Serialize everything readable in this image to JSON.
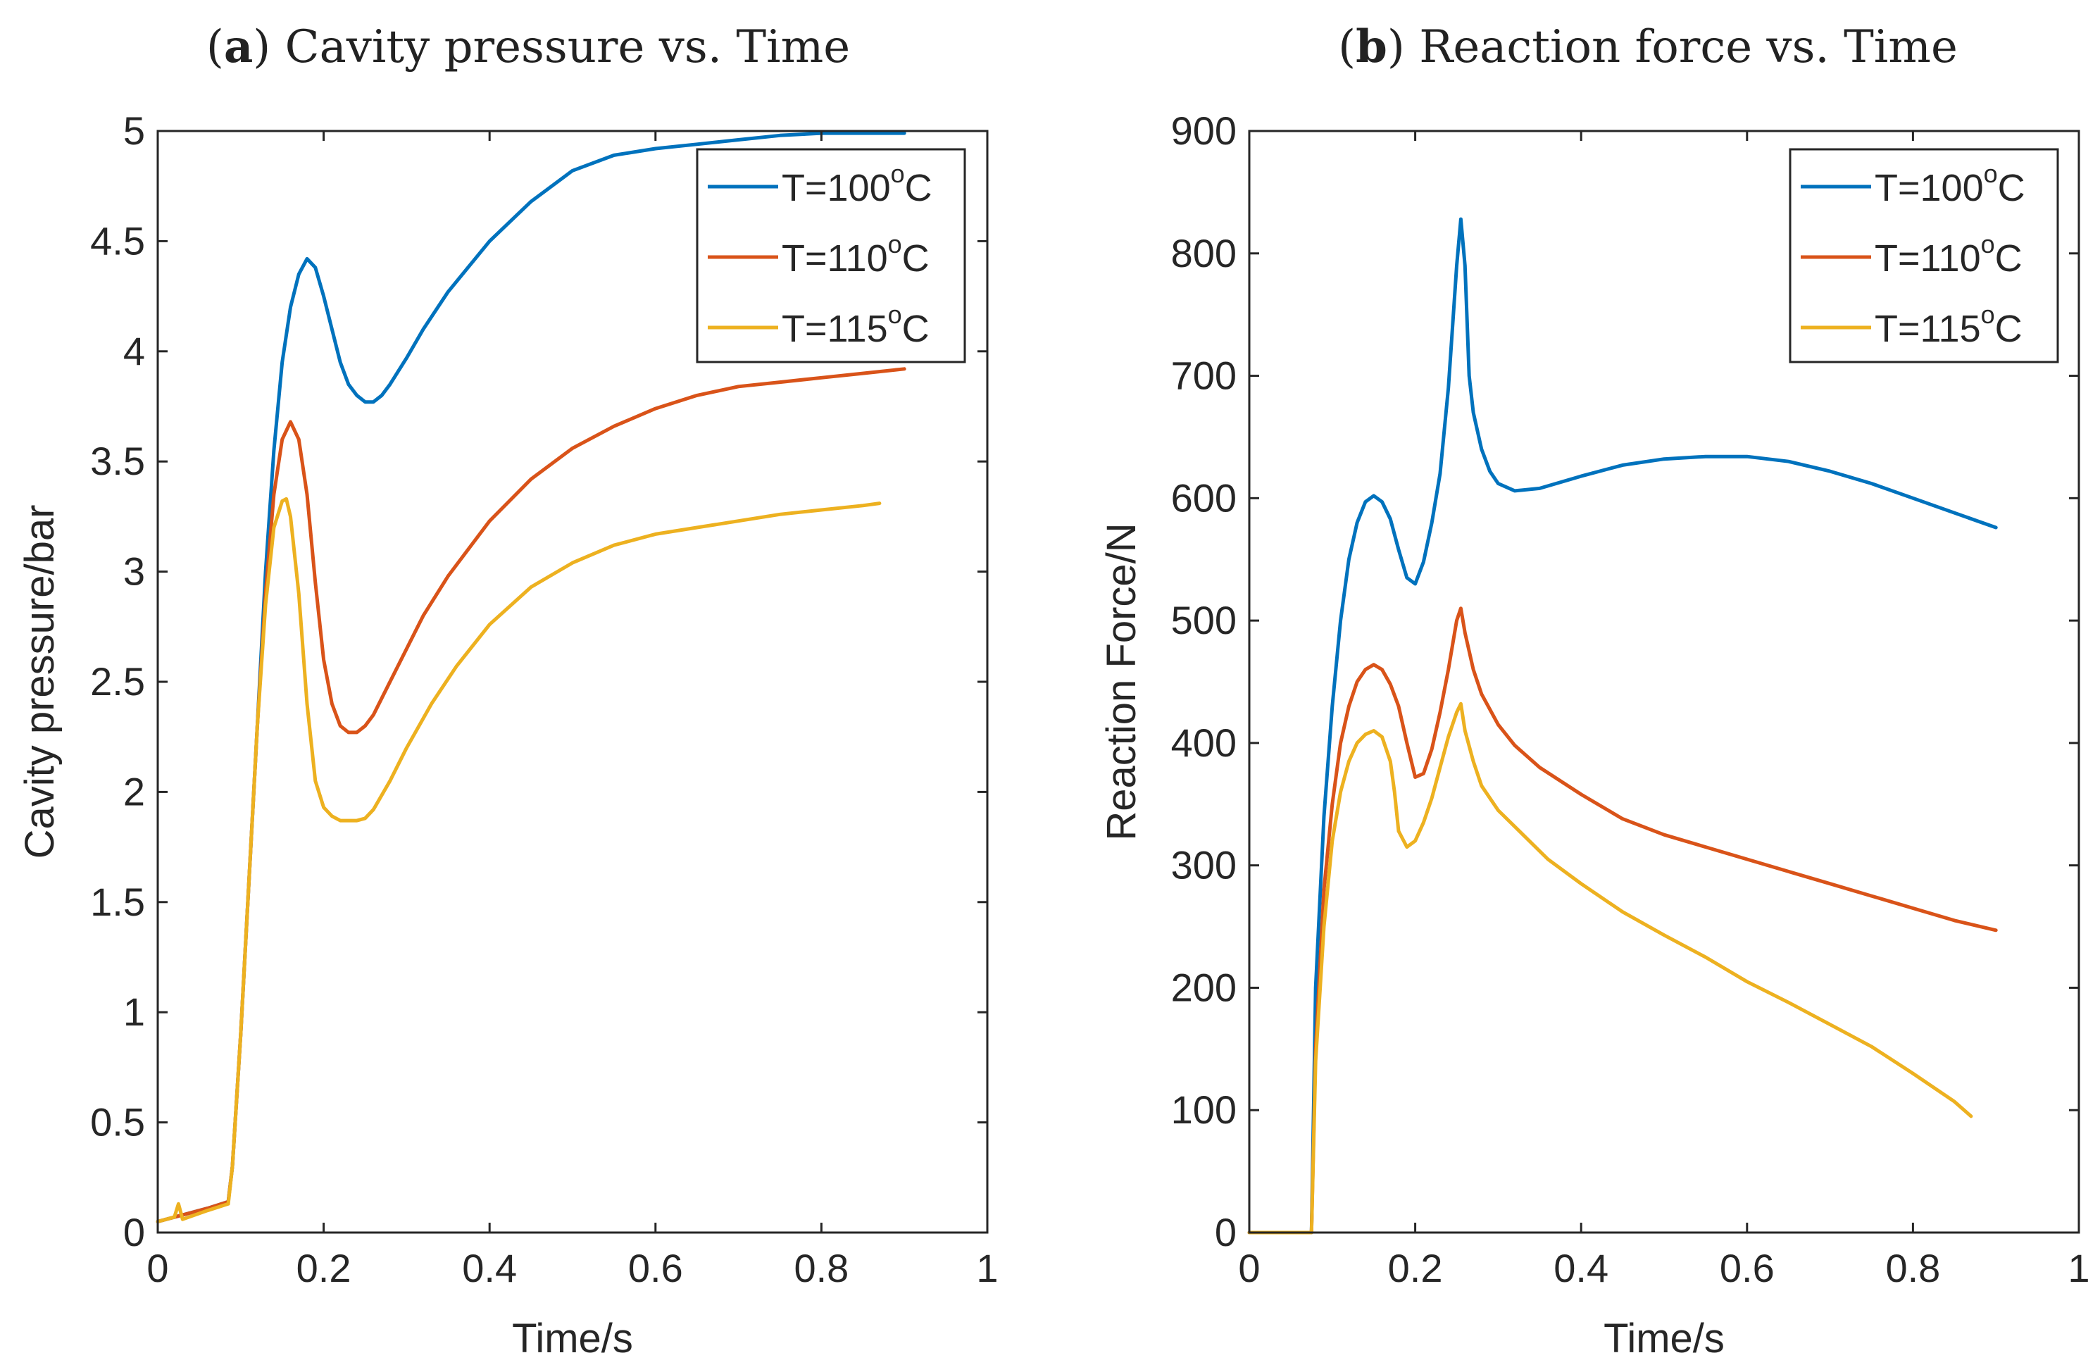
{
  "chart_data": [
    {
      "type": "line",
      "title_prefix": "(",
      "title_letter": "a",
      "title_rest": ") Cavity pressure vs. Time",
      "xlabel": "Time/s",
      "ylabel": "Cavity pressure/bar",
      "xlim": [
        0,
        1
      ],
      "ylim": [
        0,
        5
      ],
      "xticks": [
        0,
        0.2,
        0.4,
        0.6,
        0.8,
        1
      ],
      "xtick_labels": [
        "0",
        "0.2",
        "0.4",
        "0.6",
        "0.8",
        "1"
      ],
      "yticks": [
        0,
        0.5,
        1,
        1.5,
        2,
        2.5,
        3,
        3.5,
        4,
        4.5,
        5
      ],
      "ytick_labels": [
        "0",
        "0.5",
        "1",
        "1.5",
        "2",
        "2.5",
        "3",
        "3.5",
        "4",
        "4.5",
        "5"
      ],
      "legend_position": "top-right",
      "series": [
        {
          "name": "T=100",
          "name_sup": "o",
          "name_suffix": "C",
          "color": "#0072BD",
          "x": [
            0,
            0.03,
            0.06,
            0.085,
            0.09,
            0.1,
            0.11,
            0.12,
            0.13,
            0.14,
            0.15,
            0.16,
            0.17,
            0.18,
            0.19,
            0.2,
            0.21,
            0.22,
            0.23,
            0.24,
            0.25,
            0.26,
            0.27,
            0.28,
            0.3,
            0.32,
            0.35,
            0.4,
            0.45,
            0.5,
            0.55,
            0.6,
            0.65,
            0.7,
            0.75,
            0.8,
            0.85,
            0.9
          ],
          "y": [
            0.05,
            0.08,
            0.11,
            0.14,
            0.3,
            0.9,
            1.6,
            2.3,
            3.0,
            3.55,
            3.95,
            4.2,
            4.35,
            4.42,
            4.38,
            4.25,
            4.1,
            3.95,
            3.85,
            3.8,
            3.77,
            3.77,
            3.8,
            3.85,
            3.97,
            4.1,
            4.27,
            4.5,
            4.68,
            4.82,
            4.89,
            4.92,
            4.94,
            4.96,
            4.98,
            4.99,
            4.99,
            4.99
          ]
        },
        {
          "name": "T=110",
          "name_sup": "o",
          "name_suffix": "C",
          "color": "#D95319",
          "x": [
            0,
            0.03,
            0.06,
            0.085,
            0.09,
            0.1,
            0.11,
            0.12,
            0.13,
            0.14,
            0.15,
            0.16,
            0.17,
            0.18,
            0.19,
            0.2,
            0.21,
            0.22,
            0.23,
            0.24,
            0.25,
            0.26,
            0.28,
            0.3,
            0.32,
            0.35,
            0.4,
            0.45,
            0.5,
            0.55,
            0.6,
            0.65,
            0.7,
            0.75,
            0.8,
            0.85,
            0.9
          ],
          "y": [
            0.05,
            0.08,
            0.11,
            0.14,
            0.3,
            0.9,
            1.6,
            2.3,
            2.9,
            3.35,
            3.6,
            3.68,
            3.6,
            3.35,
            2.95,
            2.6,
            2.4,
            2.3,
            2.27,
            2.27,
            2.3,
            2.35,
            2.5,
            2.65,
            2.8,
            2.98,
            3.23,
            3.42,
            3.56,
            3.66,
            3.74,
            3.8,
            3.84,
            3.86,
            3.88,
            3.9,
            3.92
          ]
        },
        {
          "name": "T=115",
          "name_sup": "o",
          "name_suffix": "C",
          "color": "#EDB120",
          "x": [
            0,
            0.02,
            0.025,
            0.03,
            0.06,
            0.085,
            0.09,
            0.1,
            0.11,
            0.12,
            0.13,
            0.14,
            0.15,
            0.155,
            0.16,
            0.17,
            0.18,
            0.19,
            0.2,
            0.21,
            0.22,
            0.23,
            0.24,
            0.25,
            0.26,
            0.28,
            0.3,
            0.33,
            0.36,
            0.4,
            0.45,
            0.5,
            0.55,
            0.6,
            0.65,
            0.7,
            0.75,
            0.8,
            0.85,
            0.87
          ],
          "y": [
            0.05,
            0.07,
            0.13,
            0.06,
            0.1,
            0.13,
            0.3,
            0.9,
            1.6,
            2.3,
            2.85,
            3.2,
            3.32,
            3.33,
            3.25,
            2.9,
            2.4,
            2.05,
            1.93,
            1.89,
            1.87,
            1.87,
            1.87,
            1.88,
            1.92,
            2.05,
            2.2,
            2.4,
            2.57,
            2.76,
            2.93,
            3.04,
            3.12,
            3.17,
            3.2,
            3.23,
            3.26,
            3.28,
            3.3,
            3.31
          ]
        }
      ]
    },
    {
      "type": "line",
      "title_prefix": "(",
      "title_letter": "b",
      "title_rest": ") Reaction force vs. Time",
      "xlabel": "Time/s",
      "ylabel": "Reaction Force/N",
      "xlim": [
        0,
        1
      ],
      "ylim": [
        0,
        900
      ],
      "xticks": [
        0,
        0.2,
        0.4,
        0.6,
        0.8,
        1
      ],
      "xtick_labels": [
        "0",
        "0.2",
        "0.4",
        "0.6",
        "0.8",
        "1"
      ],
      "yticks": [
        0,
        100,
        200,
        300,
        400,
        500,
        600,
        700,
        800,
        900
      ],
      "ytick_labels": [
        "0",
        "100",
        "200",
        "300",
        "400",
        "500",
        "600",
        "700",
        "800",
        "900"
      ],
      "legend_position": "top-right",
      "series": [
        {
          "name": "T=100",
          "name_sup": "o",
          "name_suffix": "C",
          "color": "#0072BD",
          "x": [
            0,
            0.04,
            0.075,
            0.08,
            0.09,
            0.1,
            0.11,
            0.12,
            0.13,
            0.14,
            0.15,
            0.16,
            0.17,
            0.18,
            0.19,
            0.2,
            0.21,
            0.22,
            0.23,
            0.24,
            0.25,
            0.255,
            0.26,
            0.265,
            0.27,
            0.28,
            0.29,
            0.3,
            0.32,
            0.35,
            0.4,
            0.45,
            0.5,
            0.55,
            0.6,
            0.65,
            0.7,
            0.75,
            0.8,
            0.85,
            0.9
          ],
          "y": [
            0,
            0,
            0,
            200,
            340,
            430,
            500,
            550,
            580,
            597,
            602,
            597,
            583,
            558,
            535,
            530,
            548,
            580,
            620,
            690,
            790,
            828,
            790,
            700,
            670,
            640,
            622,
            612,
            606,
            608,
            618,
            627,
            632,
            634,
            634,
            630,
            622,
            612,
            600,
            588,
            576
          ]
        },
        {
          "name": "T=110",
          "name_sup": "o",
          "name_suffix": "C",
          "color": "#D95319",
          "x": [
            0,
            0.04,
            0.075,
            0.08,
            0.09,
            0.1,
            0.11,
            0.12,
            0.13,
            0.14,
            0.15,
            0.16,
            0.17,
            0.18,
            0.19,
            0.2,
            0.21,
            0.22,
            0.23,
            0.24,
            0.25,
            0.255,
            0.26,
            0.27,
            0.28,
            0.3,
            0.32,
            0.35,
            0.4,
            0.45,
            0.5,
            0.55,
            0.6,
            0.65,
            0.7,
            0.75,
            0.8,
            0.85,
            0.9
          ],
          "y": [
            0,
            0,
            0,
            150,
            280,
            350,
            400,
            430,
            450,
            460,
            464,
            460,
            448,
            430,
            400,
            372,
            375,
            395,
            425,
            460,
            500,
            510,
            490,
            460,
            440,
            415,
            398,
            380,
            358,
            338,
            325,
            315,
            305,
            295,
            285,
            275,
            265,
            255,
            247
          ]
        },
        {
          "name": "T=115",
          "name_sup": "o",
          "name_suffix": "C",
          "color": "#EDB120",
          "x": [
            0,
            0.04,
            0.075,
            0.08,
            0.09,
            0.1,
            0.11,
            0.12,
            0.13,
            0.14,
            0.15,
            0.16,
            0.17,
            0.175,
            0.18,
            0.19,
            0.2,
            0.21,
            0.22,
            0.23,
            0.24,
            0.25,
            0.255,
            0.26,
            0.27,
            0.28,
            0.3,
            0.33,
            0.36,
            0.4,
            0.45,
            0.5,
            0.55,
            0.6,
            0.65,
            0.7,
            0.75,
            0.8,
            0.85,
            0.87
          ],
          "y": [
            0,
            0,
            0,
            140,
            250,
            320,
            360,
            385,
            400,
            407,
            410,
            405,
            385,
            360,
            328,
            315,
            320,
            335,
            355,
            380,
            405,
            425,
            432,
            410,
            385,
            365,
            345,
            325,
            305,
            285,
            262,
            243,
            225,
            205,
            188,
            170,
            152,
            130,
            107,
            95
          ]
        }
      ]
    }
  ]
}
